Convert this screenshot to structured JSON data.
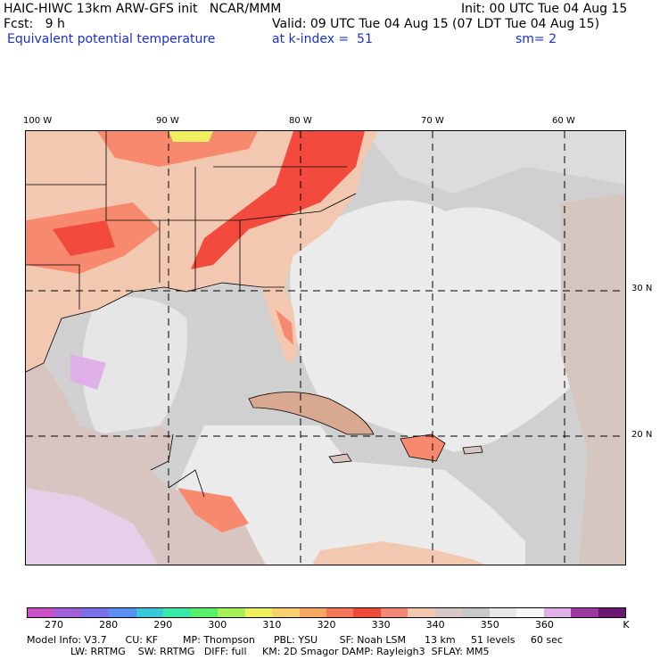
{
  "header": {
    "model_line": "HAIC-HIWC 13km ARW-GFS init   NCAR/MMM",
    "init_line": "Init: 00 UTC Tue 04 Aug 15",
    "fcst_line": "Fcst:   9 h",
    "valid_line": "Valid: 09 UTC Tue 04 Aug 15 (07 LDT Tue 04 Aug 15)",
    "field_name": "Equivalent potential temperature",
    "level_line": "at k-index =  51",
    "smooth_line": "sm= 2"
  },
  "map": {
    "lon_labels": [
      "100 W",
      "90 W",
      "80 W",
      "70 W",
      "60 W"
    ],
    "lat_labels": [
      "30 N",
      "20 N"
    ],
    "colors": {
      "land_warm": "#f2c8b0",
      "hot_a": "#f78a6e",
      "hot_b": "#f24a3c",
      "gray": "#c8c8c8",
      "light": "#ececec",
      "lavender": "#dcb0e0"
    }
  },
  "colorbar": {
    "colors": [
      "#c84fc8",
      "#a060d8",
      "#7a70e8",
      "#5a90f0",
      "#38c8d8",
      "#3ae8a8",
      "#58f068",
      "#a8f058",
      "#eef060",
      "#f8d070",
      "#f8a860",
      "#f47858",
      "#ee4a3c",
      "#f48878",
      "#f2c8b0",
      "#d8c8c8",
      "#c8c8c8",
      "#e8e8e8",
      "#f6f6f6",
      "#e0b0e8",
      "#9a3aa0",
      "#6a1870"
    ],
    "tick_labels": [
      "270",
      "280",
      "290",
      "300",
      "310",
      "320",
      "330",
      "340",
      "350",
      "360"
    ],
    "unit": "K"
  },
  "footer": {
    "line1": "Model Info: V3.7      CU: KF        MP: Thompson      PBL: YSU       SF: Noah LSM      13 km     51 levels     60 sec",
    "line2": "              LW: RRTMG    SW: RRTMG   DIFF: full     KM: 2D Smagor DAMP: Rayleigh3  SFLAY: MM5"
  }
}
